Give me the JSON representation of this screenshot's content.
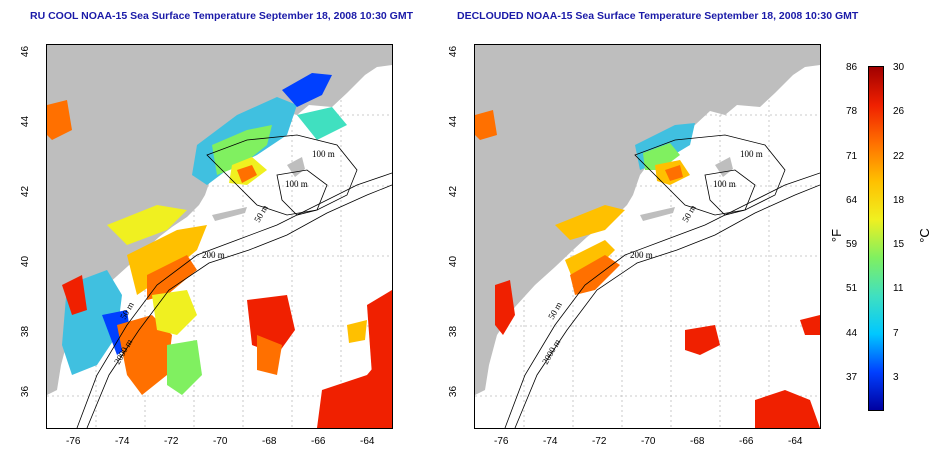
{
  "panels": [
    {
      "title": "RU COOL NOAA-15 Sea Surface Temperature September 18, 2008 10:30 GMT"
    },
    {
      "title": "DECLOUDED NOAA-15 Sea Surface Temperature September 18, 2008 10:30 GMT"
    }
  ],
  "axes": {
    "lon_ticks": [
      "-76",
      "-74",
      "-72",
      "-70",
      "-68",
      "-66",
      "-64"
    ],
    "lat_ticks": [
      "46",
      "44",
      "42",
      "40",
      "38",
      "36"
    ]
  },
  "isobaths": [
    "100 m",
    "100 m",
    "50 m",
    "200 m",
    "50 m",
    "2000 m"
  ],
  "colorbar": {
    "fahrenheit_ticks": [
      "86",
      "78",
      "71",
      "64",
      "59",
      "51",
      "44",
      "37"
    ],
    "celsius_ticks": [
      "30",
      "26",
      "22",
      "18",
      "15",
      "11",
      "7",
      "3"
    ],
    "f_unit": "°F",
    "c_unit": "°C",
    "colors": [
      "#0000a0",
      "#0040ff",
      "#00c8ff",
      "#40e0c0",
      "#80f060",
      "#f0f020",
      "#ffc000",
      "#ff7000",
      "#f02000",
      "#a00000"
    ]
  },
  "colors": {
    "land": "#bebebe",
    "sea_bg": "#ffffff",
    "contour": "#000000",
    "grid": "#bbbbbb"
  }
}
